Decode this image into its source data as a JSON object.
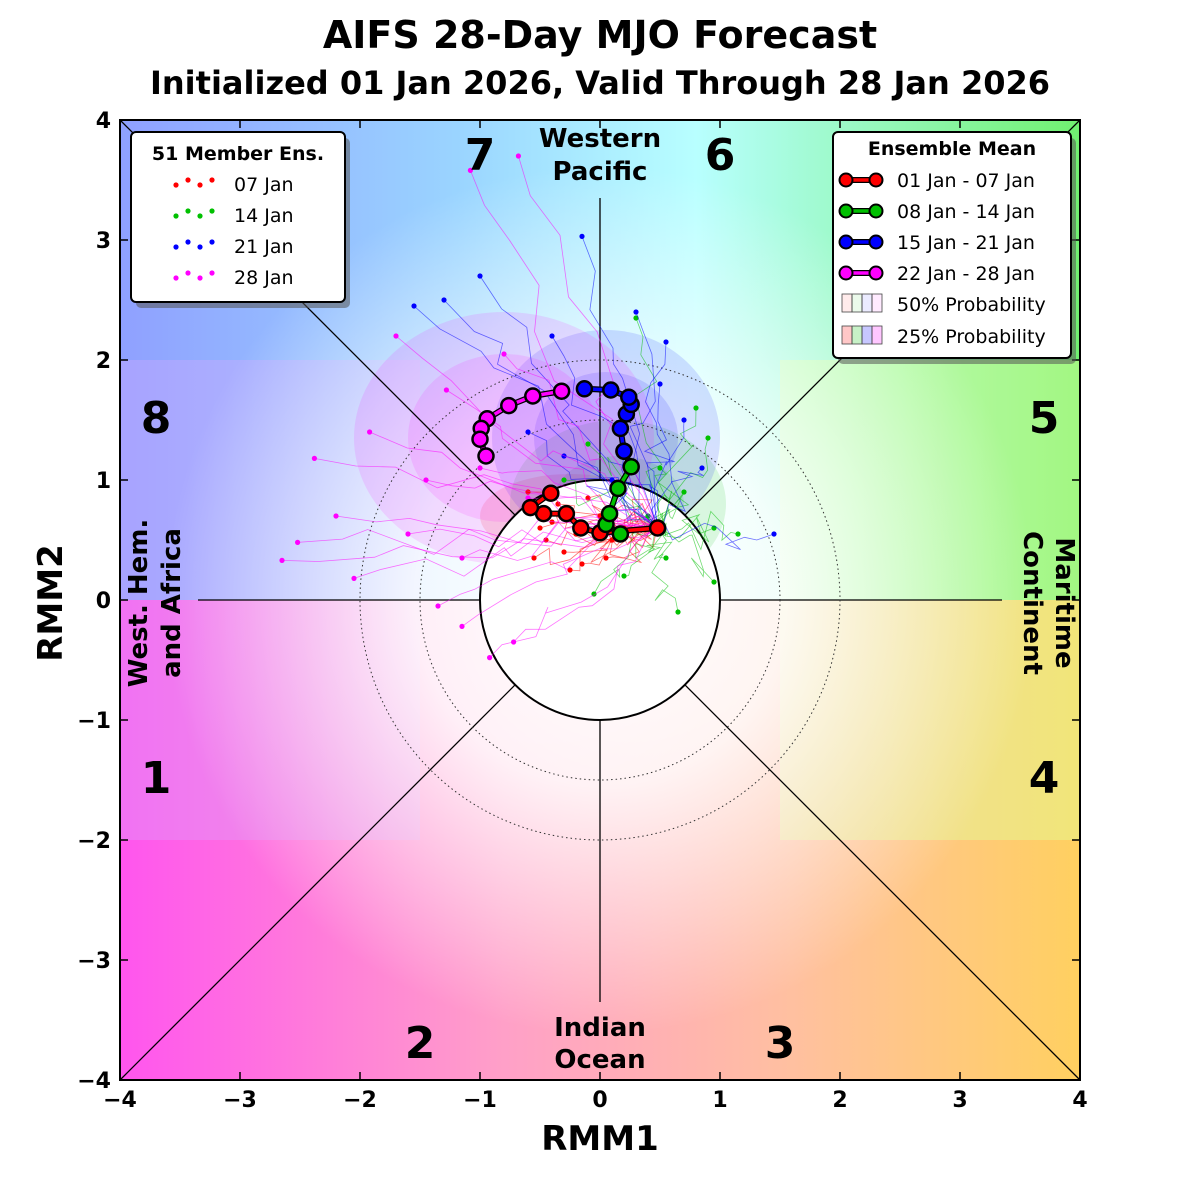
{
  "chart_data": {
    "type": "line",
    "title": "AIFS 28-Day MJO Forecast",
    "subtitle": "Initialized 01 Jan 2026, Valid Through 28 Jan 2026",
    "xlabel": "RMM1",
    "ylabel": "RMM2",
    "xlim": [
      -4,
      4
    ],
    "ylim": [
      -4,
      4
    ],
    "x_ticks": [
      "−4",
      "−3",
      "−2",
      "−1",
      "0",
      "1",
      "2",
      "3",
      "4"
    ],
    "y_ticks": [
      "−4",
      "−3",
      "−2",
      "−1",
      "0",
      "1",
      "2",
      "3",
      "4"
    ],
    "phase_labels": [
      "1",
      "2",
      "3",
      "4",
      "5",
      "6",
      "7",
      "8"
    ],
    "regions": {
      "top_line1": "Western",
      "top_line2": "Pacific",
      "bottom_line1": "Indian",
      "bottom_line2": "Ocean",
      "left_line1": "West. Hem.",
      "left_line2": "and Africa",
      "right_line1": "Maritime",
      "right_line2": "Continent"
    },
    "unit_circle_radius": 1,
    "dotted_circles": [
      1.5,
      2.0
    ],
    "ensemble_legend": {
      "title": "51 Member Ens.",
      "entries": [
        {
          "label": "07 Jan",
          "color": "#ff0000"
        },
        {
          "label": "14 Jan",
          "color": "#00c000"
        },
        {
          "label": "21 Jan",
          "color": "#0000ff"
        },
        {
          "label": "28 Jan",
          "color": "#ff00ff"
        }
      ]
    },
    "mean_legend": {
      "title": "Ensemble Mean",
      "entries": [
        {
          "label": "01 Jan - 07 Jan",
          "color": "#ff0000"
        },
        {
          "label": "08 Jan - 14 Jan",
          "color": "#00c000"
        },
        {
          "label": "15 Jan - 21 Jan",
          "color": "#0000ff"
        },
        {
          "label": "22 Jan - 28 Jan",
          "color": "#ff00ff"
        }
      ],
      "prob50_label": "50% Probability",
      "prob25_label": "25% Probability"
    },
    "series": [
      {
        "color": "#ff0000",
        "points": [
          [
            0.48,
            0.6
          ],
          [
            0.0,
            0.56
          ],
          [
            -0.16,
            0.6
          ],
          [
            -0.28,
            0.72
          ],
          [
            -0.47,
            0.72
          ],
          [
            -0.58,
            0.77
          ],
          [
            -0.41,
            0.89
          ]
        ]
      },
      {
        "color": "#00c000",
        "points": [
          [
            0.17,
            0.55
          ],
          [
            0.05,
            0.63
          ],
          [
            0.08,
            0.72
          ],
          [
            0.15,
            0.93
          ],
          [
            0.26,
            1.11
          ],
          [
            0.2,
            1.24
          ]
        ]
      },
      {
        "color": "#0000ff",
        "points": [
          [
            0.2,
            1.24
          ],
          [
            0.17,
            1.43
          ],
          [
            0.22,
            1.55
          ],
          [
            0.26,
            1.63
          ],
          [
            0.24,
            1.69
          ],
          [
            0.09,
            1.75
          ],
          [
            -0.13,
            1.76
          ]
        ]
      },
      {
        "color": "#ff00ff",
        "points": [
          [
            -0.32,
            1.74
          ],
          [
            -0.56,
            1.7
          ],
          [
            -0.76,
            1.62
          ],
          [
            -0.94,
            1.51
          ],
          [
            -0.99,
            1.43
          ],
          [
            -1.0,
            1.34
          ],
          [
            -0.95,
            1.2
          ]
        ]
      }
    ],
    "probability_ellipses": [
      {
        "color": "#ff0000",
        "center": [
          -0.25,
          0.7
        ],
        "rx50": 0.45,
        "ry50": 0.2,
        "rx25": 0.75,
        "ry25": 0.35
      },
      {
        "color": "#00c000",
        "center": [
          0.15,
          0.8
        ],
        "rx50": 0.55,
        "ry50": 0.4,
        "rx25": 0.9,
        "ry25": 0.7
      },
      {
        "color": "#0000ff",
        "center": [
          0.05,
          1.35
        ],
        "rx50": 0.6,
        "ry50": 0.55,
        "rx25": 0.95,
        "ry25": 0.9
      },
      {
        "color": "#ff00ff",
        "center": [
          -0.8,
          1.35
        ],
        "rx50": 0.8,
        "ry50": 0.7,
        "rx25": 1.25,
        "ry25": 1.05
      }
    ],
    "ensemble_endpoints": [
      {
        "color": "#ff0000",
        "points": [
          [
            -0.45,
            0.5
          ],
          [
            -0.3,
            0.4
          ],
          [
            -0.15,
            0.3
          ],
          [
            0.05,
            0.35
          ],
          [
            -0.5,
            0.6
          ],
          [
            -0.2,
            0.55
          ],
          [
            0.1,
            0.5
          ],
          [
            -0.35,
            0.8
          ],
          [
            -0.1,
            0.85
          ],
          [
            0.2,
            0.6
          ],
          [
            -0.55,
            0.35
          ],
          [
            -0.25,
            0.25
          ],
          [
            -0.6,
            0.9
          ],
          [
            0.0,
            0.7
          ],
          [
            -0.4,
            0.65
          ]
        ]
      },
      {
        "color": "#00c000",
        "points": [
          [
            0.95,
            0.6
          ],
          [
            0.5,
            1.1
          ],
          [
            0.9,
            1.35
          ],
          [
            0.95,
            0.15
          ],
          [
            0.65,
            -0.1
          ],
          [
            0.4,
            0.7
          ],
          [
            -0.1,
            1.3
          ],
          [
            0.3,
            2.35
          ],
          [
            -0.3,
            1.0
          ],
          [
            0.7,
            0.9
          ],
          [
            0.2,
            0.2
          ],
          [
            -0.05,
            0.05
          ],
          [
            0.8,
            1.6
          ],
          [
            1.15,
            0.55
          ],
          [
            0.55,
            0.35
          ]
        ]
      },
      {
        "color": "#0000ff",
        "points": [
          [
            -1.55,
            2.45
          ],
          [
            -1.3,
            2.5
          ],
          [
            -1.0,
            2.7
          ],
          [
            -0.15,
            3.03
          ],
          [
            0.3,
            2.4
          ],
          [
            0.7,
            1.5
          ],
          [
            0.85,
            1.1
          ],
          [
            -0.3,
            1.2
          ],
          [
            0.1,
            1.0
          ],
          [
            0.5,
            1.8
          ],
          [
            1.45,
            0.55
          ],
          [
            -0.6,
            1.4
          ],
          [
            0.55,
            2.15
          ],
          [
            0.2,
            1.2
          ],
          [
            -0.4,
            2.2
          ]
        ]
      },
      {
        "color": "#ff00ff",
        "points": [
          [
            -1.08,
            3.58
          ],
          [
            -0.68,
            3.7
          ],
          [
            -2.65,
            0.33
          ],
          [
            -2.52,
            0.48
          ],
          [
            -2.38,
            1.18
          ],
          [
            -2.05,
            0.18
          ],
          [
            -1.15,
            0.35
          ],
          [
            -1.35,
            -0.05
          ],
          [
            -1.15,
            -0.22
          ],
          [
            -0.92,
            -0.48
          ],
          [
            -0.72,
            -0.35
          ],
          [
            -1.92,
            1.4
          ],
          [
            -1.45,
            1.0
          ],
          [
            -1.28,
            1.75
          ],
          [
            -1.0,
            1.1
          ],
          [
            -0.6,
            0.85
          ],
          [
            -2.2,
            0.7
          ],
          [
            -1.6,
            0.55
          ],
          [
            -0.8,
            2.05
          ],
          [
            -1.7,
            2.2
          ]
        ]
      }
    ]
  }
}
